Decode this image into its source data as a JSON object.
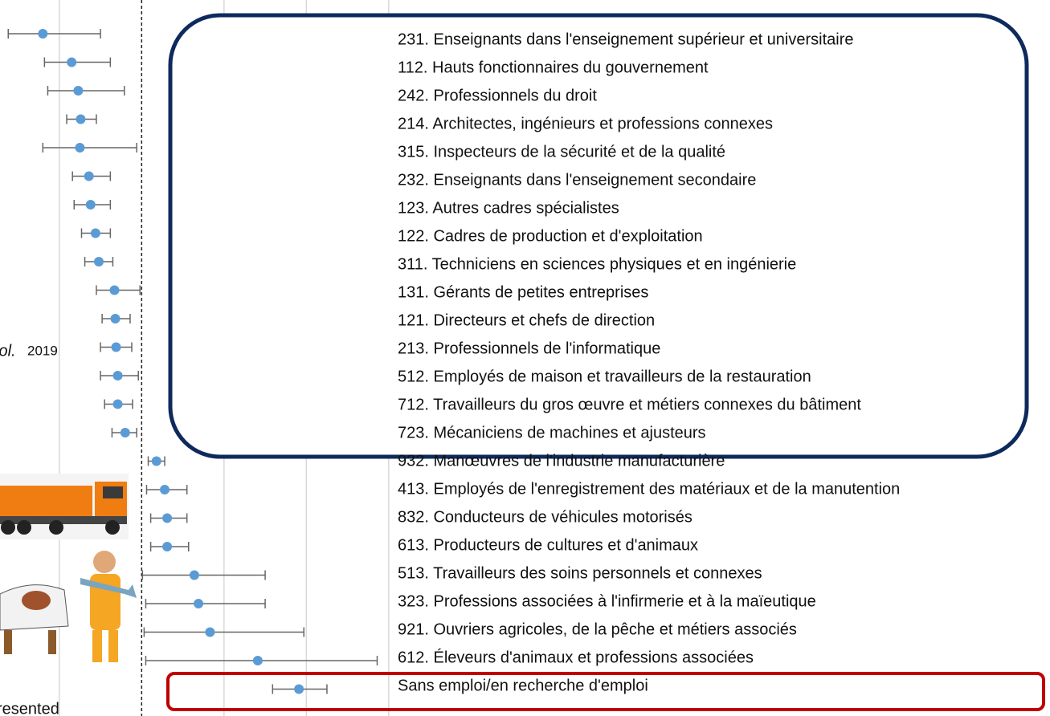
{
  "chart_data": {
    "type": "forest",
    "categories": [
      "231. Enseignants dans l'enseignement supérieur et universitaire",
      "112. Hauts fonctionnaires du gouvernement",
      "242. Professionnels du droit",
      "214. Architectes, ingénieurs et professions connexes",
      "315. Inspecteurs de la sécurité et de la qualité",
      "232. Enseignants dans l'enseignement secondaire",
      "123. Autres cadres spécialistes",
      "122. Cadres de production et d'exploitation",
      "311. Techniciens en sciences physiques et en ingénierie",
      "131. Gérants de petites entreprises",
      "121. Directeurs et chefs de direction",
      "213. Professionnels de l'informatique",
      "512. Employés de maison et travailleurs de la restauration",
      "712. Travailleurs du gros œuvre et métiers connexes du bâtiment",
      "723. Mécaniciens de machines et ajusteurs",
      "932. Manœuvres de l'industrie manufacturière",
      "413. Employés de l'enregistrement des matériaux et de la manutention",
      "832. Conducteurs de véhicules motorisés",
      "613. Producteurs de cultures et d'animaux",
      "513. Travailleurs des soins personnels et connexes",
      "323. Professions associées à l'infirmerie et à la maïeutique",
      "921. Ouvriers agricoles, de la pêche et métiers associés",
      "612. Éleveurs d'animaux et professions associées",
      "Sans emploi/en recherche d'emploi"
    ],
    "values": [
      -0.2,
      0.15,
      0.23,
      0.26,
      0.25,
      0.36,
      0.38,
      0.44,
      0.48,
      0.67,
      0.68,
      0.69,
      0.71,
      0.71,
      0.8,
      1.18,
      1.28,
      1.31,
      1.31,
      1.64,
      1.69,
      1.83,
      2.41,
      2.91
    ],
    "lower": [
      -0.62,
      -0.18,
      -0.14,
      0.09,
      -0.2,
      0.16,
      0.18,
      0.27,
      0.31,
      0.45,
      0.52,
      0.5,
      0.5,
      0.55,
      0.64,
      1.08,
      1.06,
      1.11,
      1.11,
      1.01,
      1.05,
      1.03,
      1.05,
      2.59
    ],
    "upper": [
      0.5,
      0.62,
      0.79,
      0.45,
      0.94,
      0.62,
      0.62,
      0.62,
      0.65,
      0.98,
      0.86,
      0.88,
      0.96,
      0.89,
      0.94,
      1.28,
      1.55,
      1.55,
      1.57,
      2.5,
      2.5,
      2.97,
      3.86,
      3.25
    ],
    "color": "#5b9bd5",
    "xlim": [
      -0.72,
      12.03
    ],
    "gridlines": [
      0,
      2,
      3,
      4
    ],
    "refline": 1,
    "side_texts": [
      "iol.",
      "2019",
      "resented"
    ]
  }
}
